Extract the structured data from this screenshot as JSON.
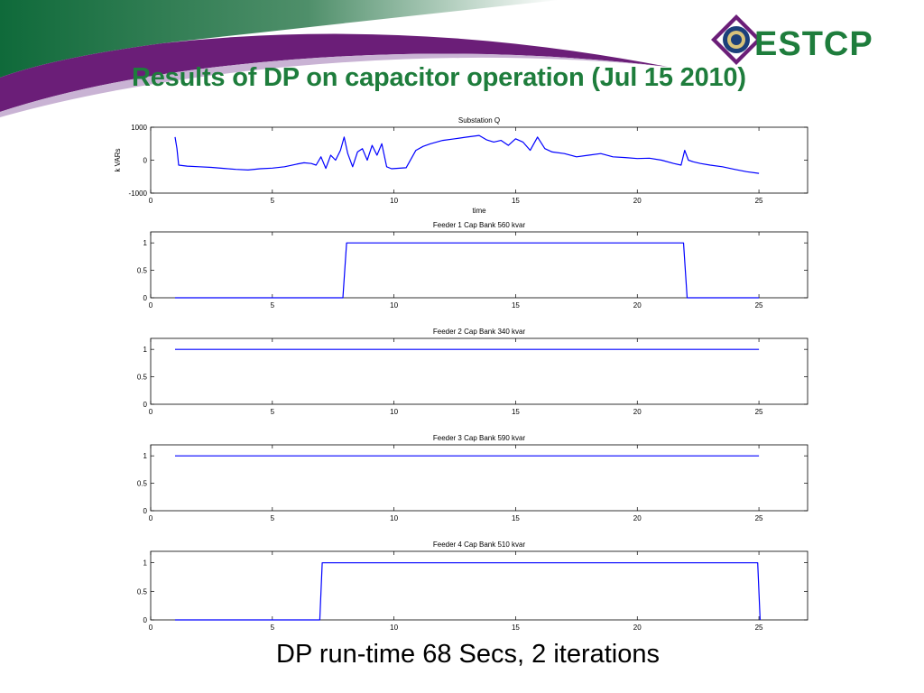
{
  "slide": {
    "title": "Results of DP on capacitor operation (Jul 15 2010)",
    "caption": "DP run-time 68 Secs, 2 iterations",
    "logo_text": "ESTCP"
  },
  "colors": {
    "title": "#1e7d3c",
    "banner_green": "#0f6a3a",
    "banner_purple": "#6b1e78",
    "series": "#0000ff"
  },
  "chart_data": [
    {
      "type": "line",
      "title": "Substation Q",
      "xlabel": "time",
      "ylabel": "k VARs",
      "xlim": [
        0,
        27
      ],
      "ylim": [
        -1000,
        1000
      ],
      "xticks": [
        0,
        5,
        10,
        15,
        20,
        25
      ],
      "yticks": [
        -1000,
        0,
        1000
      ],
      "grid": false,
      "series": [
        {
          "x": [
            1,
            1.08,
            1.15,
            1.5,
            2,
            2.5,
            3,
            3.5,
            4,
            4.5,
            5,
            5.5,
            6,
            6.3,
            6.6,
            6.8,
            7,
            7.2,
            7.4,
            7.6,
            7.8,
            7.95,
            8.1,
            8.3,
            8.5,
            8.7,
            8.9,
            9.1,
            9.3,
            9.5,
            9.7,
            9.9,
            10.1,
            10.5,
            10.9,
            11.2,
            11.5,
            12,
            12.5,
            13,
            13.5,
            13.8,
            14.1,
            14.4,
            14.7,
            15,
            15.3,
            15.6,
            15.9,
            16.2,
            16.5,
            17,
            17.5,
            18,
            18.5,
            19,
            19.5,
            20,
            20.5,
            21,
            21.5,
            21.8,
            21.95,
            22.1,
            22.3,
            22.6,
            23,
            23.5,
            24,
            24.5,
            25
          ],
          "y": [
            700,
            350,
            -150,
            -180,
            -200,
            -220,
            -250,
            -280,
            -300,
            -260,
            -240,
            -200,
            -120,
            -80,
            -100,
            -150,
            100,
            -250,
            150,
            0,
            300,
            700,
            200,
            -200,
            250,
            350,
            0,
            450,
            150,
            500,
            -200,
            -260,
            -250,
            -230,
            300,
            420,
            500,
            600,
            650,
            700,
            750,
            620,
            550,
            600,
            450,
            650,
            550,
            300,
            700,
            350,
            250,
            200,
            100,
            150,
            200,
            100,
            80,
            50,
            60,
            0,
            -100,
            -150,
            300,
            0,
            -50,
            -100,
            -150,
            -200,
            -280,
            -350,
            -400
          ]
        }
      ]
    },
    {
      "type": "line",
      "title": "Feeder 1 Cap Bank 560 kvar",
      "xlim": [
        0,
        27
      ],
      "ylim": [
        0,
        1.2
      ],
      "xticks": [
        0,
        5,
        10,
        15,
        20,
        25
      ],
      "yticks": [
        0,
        0.5,
        1
      ],
      "grid": false,
      "series": [
        {
          "x": [
            1,
            7.9,
            8.05,
            21.9,
            22.05,
            25
          ],
          "y": [
            0,
            0,
            1,
            1,
            0,
            0
          ]
        }
      ]
    },
    {
      "type": "line",
      "title": "Feeder 2 Cap Bank 340 kvar",
      "xlim": [
        0,
        27
      ],
      "ylim": [
        0,
        1.2
      ],
      "xticks": [
        0,
        5,
        10,
        15,
        20,
        25
      ],
      "yticks": [
        0,
        0.5,
        1
      ],
      "grid": false,
      "series": [
        {
          "x": [
            1,
            25
          ],
          "y": [
            1,
            1
          ]
        }
      ]
    },
    {
      "type": "line",
      "title": "Feeder 3 Cap Bank 590 kvar",
      "xlim": [
        0,
        27
      ],
      "ylim": [
        0,
        1.2
      ],
      "xticks": [
        0,
        5,
        10,
        15,
        20,
        25
      ],
      "yticks": [
        0,
        0.5,
        1
      ],
      "grid": false,
      "series": [
        {
          "x": [
            1,
            25
          ],
          "y": [
            1,
            1
          ]
        }
      ]
    },
    {
      "type": "line",
      "title": "Feeder 4 Cap Bank 510 kvar",
      "xlim": [
        0,
        27
      ],
      "ylim": [
        0,
        1.2
      ],
      "xticks": [
        0,
        5,
        10,
        15,
        20,
        25
      ],
      "yticks": [
        0,
        0.5,
        1
      ],
      "grid": false,
      "series": [
        {
          "x": [
            1,
            6.95,
            7.05,
            24.95,
            25.05
          ],
          "y": [
            0,
            0,
            1,
            1,
            0
          ]
        }
      ]
    }
  ]
}
